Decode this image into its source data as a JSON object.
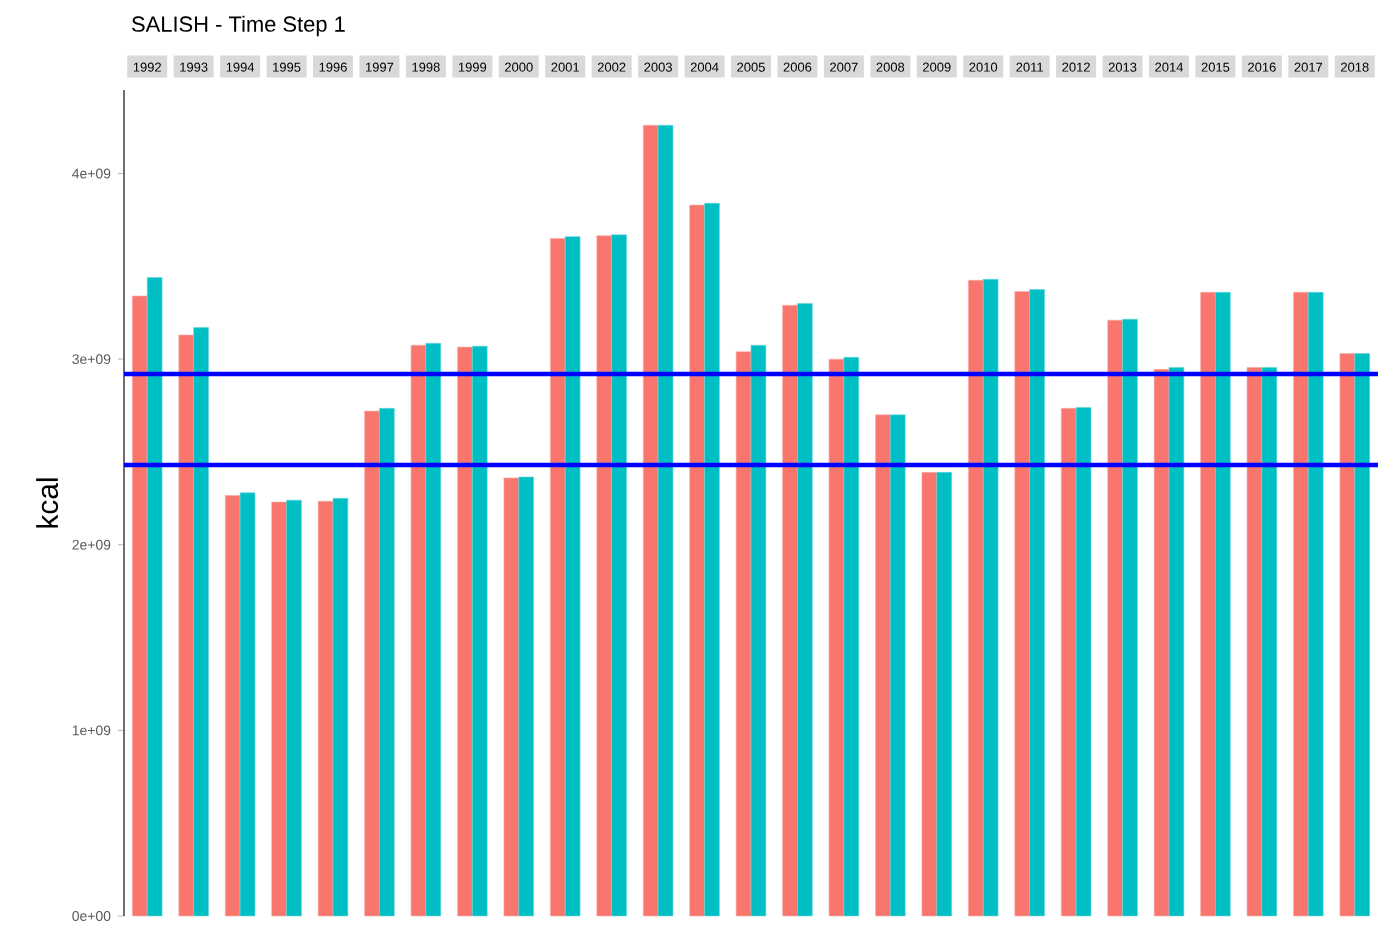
{
  "chart_data": {
    "type": "bar",
    "title": "SALISH - Time Step 1",
    "ylabel": "kcal",
    "categories": [
      "1992",
      "1993",
      "1994",
      "1995",
      "1996",
      "1997",
      "1998",
      "1999",
      "2000",
      "2001",
      "2002",
      "2003",
      "2004",
      "2005",
      "2006",
      "2007",
      "2008",
      "2009",
      "2010",
      "2011",
      "2012",
      "2013",
      "2014",
      "2015",
      "2016",
      "2017",
      "2018"
    ],
    "series": [
      {
        "color": "#f8766d",
        "values": [
          3340000000,
          3130000000,
          2265000000,
          2230000000,
          2235000000,
          2720000000,
          3075000000,
          3065000000,
          2360000000,
          3650000000,
          3665000000,
          4260000000,
          3830000000,
          3040000000,
          3290000000,
          3000000000,
          2700000000,
          2390000000,
          3425000000,
          3365000000,
          2735000000,
          3210000000,
          2945000000,
          3360000000,
          2955000000,
          3360000000,
          3030000000
        ]
      },
      {
        "color": "#00bfc4",
        "values": [
          3440000000,
          3170000000,
          2280000000,
          2240000000,
          2250000000,
          2735000000,
          3085000000,
          3070000000,
          2365000000,
          3660000000,
          3670000000,
          4260000000,
          3840000000,
          3075000000,
          3300000000,
          3010000000,
          2700000000,
          2390000000,
          3430000000,
          3375000000,
          2740000000,
          3215000000,
          2955000000,
          3360000000,
          2955000000,
          3360000000,
          3030000000
        ]
      }
    ],
    "ylim": [
      0,
      4450000000
    ],
    "yticks": [
      {
        "value": 0,
        "label": "0e+00"
      },
      {
        "value": 1000000000,
        "label": "1e+09"
      },
      {
        "value": 2000000000,
        "label": "2e+09"
      },
      {
        "value": 3000000000,
        "label": "3e+09"
      },
      {
        "value": 4000000000,
        "label": "4e+09"
      }
    ],
    "ref_lines": [
      {
        "axis": "y",
        "value": 2920000000,
        "color": "#0000ff"
      },
      {
        "axis": "y",
        "value": 2430000000,
        "color": "#0000ff"
      }
    ]
  }
}
